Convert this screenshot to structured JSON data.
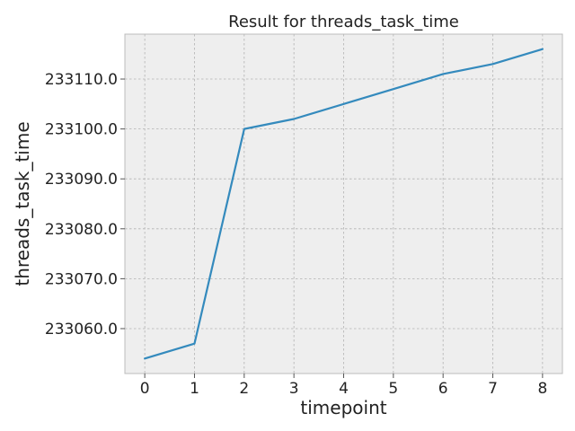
{
  "chart_data": {
    "type": "line",
    "title": "Result for threads_task_time",
    "xlabel": "timepoint",
    "ylabel": "threads_task_time",
    "x": [
      0,
      1,
      2,
      3,
      4,
      5,
      6,
      7,
      8
    ],
    "series": [
      {
        "values": [
          233054,
          233057,
          233100,
          233102,
          233105,
          233108,
          233111,
          233113,
          233116
        ],
        "color": "#348ABD"
      }
    ],
    "xlim": [
      -0.4,
      8.4
    ],
    "ylim": [
      233051,
      233119
    ],
    "x_ticks": [
      0,
      1,
      2,
      3,
      4,
      5,
      6,
      7,
      8
    ],
    "y_ticks": [
      233060.0,
      233070.0,
      233080.0,
      233090.0,
      233100.0,
      233110.0
    ],
    "x_tick_labels": [
      "0",
      "1",
      "2",
      "3",
      "4",
      "5",
      "6",
      "7",
      "8"
    ],
    "y_tick_labels": [
      "233060.0",
      "233070.0",
      "233080.0",
      "233090.0",
      "233100.0",
      "233110.0"
    ],
    "grid": true,
    "legend": "none",
    "background_color": "#EEEEEE"
  }
}
